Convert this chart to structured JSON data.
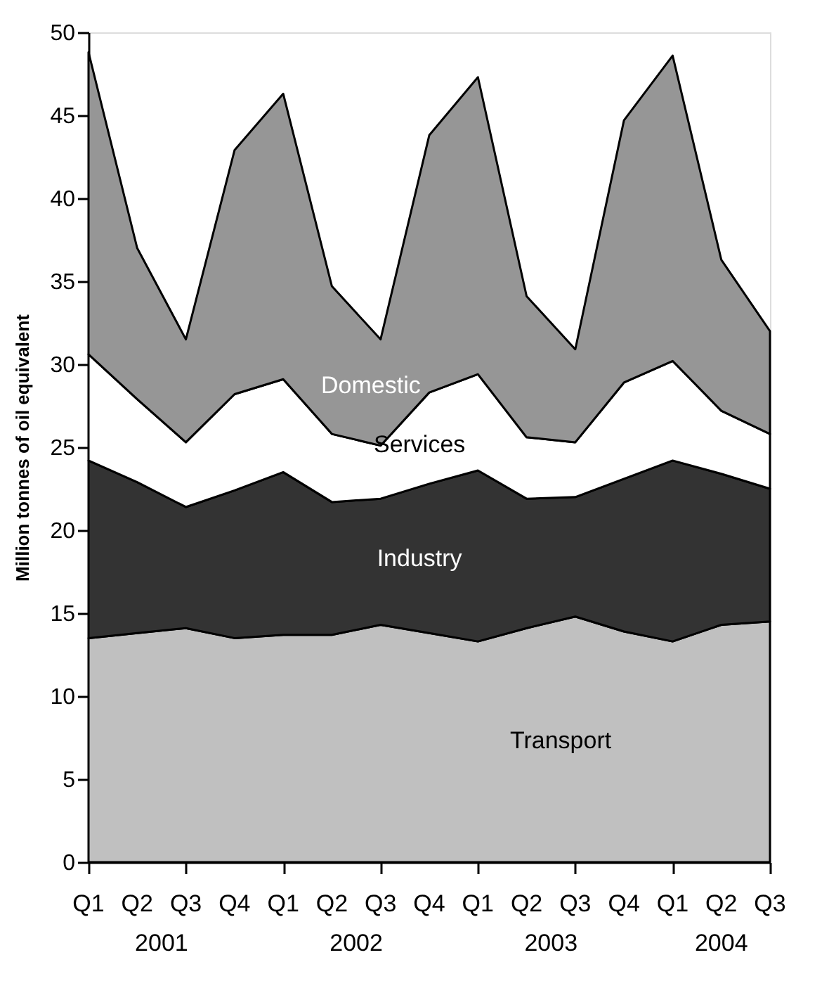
{
  "chart_data": {
    "type": "area",
    "stacked": true,
    "ylabel": "Million tonnes of oil equivalent",
    "categories": [
      "Q1",
      "Q2",
      "Q3",
      "Q4",
      "Q1",
      "Q2",
      "Q3",
      "Q4",
      "Q1",
      "Q2",
      "Q3",
      "Q4",
      "Q1",
      "Q2",
      "Q3"
    ],
    "series": [
      {
        "name": "Transport",
        "color": "#c0c0c0",
        "values": [
          13.5,
          13.8,
          14.1,
          13.5,
          13.7,
          13.7,
          14.3,
          13.8,
          13.3,
          14.1,
          14.8,
          13.9,
          13.3,
          14.3,
          14.5
        ]
      },
      {
        "name": "Industry",
        "color": "#333333",
        "values": [
          10.7,
          9.1,
          7.3,
          8.9,
          9.8,
          8.0,
          7.6,
          9.0,
          10.3,
          7.8,
          7.2,
          9.2,
          10.9,
          9.1,
          8.0
        ]
      },
      {
        "name": "Services",
        "color": "#ffffff",
        "values": [
          6.4,
          5.0,
          3.9,
          5.8,
          5.6,
          4.1,
          3.2,
          5.5,
          5.8,
          3.7,
          3.3,
          5.8,
          6.0,
          3.8,
          3.3
        ]
      },
      {
        "name": "Domestic",
        "color": "#969696",
        "values": [
          18.2,
          9.1,
          6.2,
          14.7,
          17.2,
          8.9,
          6.4,
          15.5,
          17.9,
          8.5,
          5.6,
          15.8,
          18.4,
          9.1,
          6.2
        ]
      }
    ],
    "annotations": [
      "2001",
      "2002",
      "2003",
      "2004"
    ],
    "ylim": [
      0,
      50
    ],
    "yticks": [
      0,
      5,
      10,
      15,
      20,
      25,
      30,
      35,
      40,
      45,
      50
    ],
    "grid": false,
    "legend": false
  }
}
